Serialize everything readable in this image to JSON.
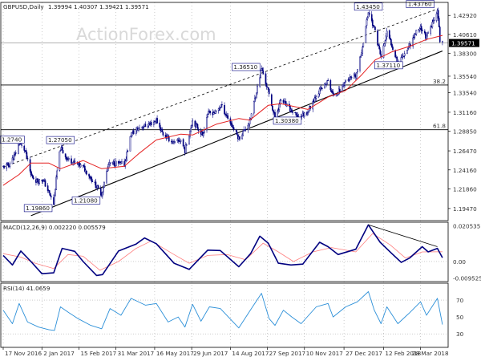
{
  "header": {
    "symbol": "GBPUSD,Daily",
    "ohlc": "1.39994 1.40307 1.39421 1.39571"
  },
  "watermark": "ActionForex.com",
  "colors": {
    "candle": "#000080",
    "sma": "#e52020",
    "trend_dashed": "#000000",
    "macd": "#000080",
    "signal": "#ff8080",
    "rsi": "#2b8fd8",
    "grid": "#999999"
  },
  "chart_data": [
    {
      "type": "candlestick",
      "title": "GBPUSD,Daily",
      "ohlc_text": "1.39994 1.40307 1.39421 1.39571",
      "ylim": [
        1.18,
        1.445
      ],
      "y_ticks": [
        "1.42920",
        "1.40610",
        "1.38300",
        "1.35540",
        "1.33540",
        "1.31160",
        "1.28850",
        "1.26470",
        "1.24160",
        "1.21860",
        "1.19470"
      ],
      "y_tick_values": [
        1.4292,
        1.4061,
        1.383,
        1.3554,
        1.3354,
        1.3116,
        1.2885,
        1.2647,
        1.2416,
        1.2186,
        1.1947
      ],
      "current_price": "1.39571",
      "fib_levels": [
        {
          "label": "38.2",
          "value": 1.3447
        },
        {
          "label": "61.8",
          "value": 1.2904
        }
      ],
      "price_labels": [
        {
          "text": "1.43450",
          "date": "2018-01-25",
          "value": 1.4345
        },
        {
          "text": "1.43760",
          "date": "2018-04-17",
          "value": 1.4376
        },
        {
          "text": "1.36510",
          "date": "2017-09-20",
          "value": 1.3651
        },
        {
          "text": "1.37110",
          "date": "2018-03-01",
          "value": 1.3711
        },
        {
          "text": "1.30380",
          "date": "2017-10-06",
          "value": 1.3038
        },
        {
          "text": "1.27050",
          "date": "2017-01-24",
          "value": 1.2705
        },
        {
          "text": "1.21080",
          "date": "2017-03-14",
          "value": 1.2108
        },
        {
          "text": "1.19860",
          "date": "2017-01-16",
          "value": 1.1986
        },
        {
          "text": "1.2740",
          "date": "2016-12-06",
          "value": 1.274
        }
      ],
      "price_path": [
        [
          "2016-11-17",
          1.245
        ],
        [
          "2016-11-24",
          1.248
        ],
        [
          "2016-12-01",
          1.26
        ],
        [
          "2016-12-06",
          1.274
        ],
        [
          "2016-12-13",
          1.265
        ],
        [
          "2016-12-20",
          1.235
        ],
        [
          "2016-12-27",
          1.228
        ],
        [
          "2017-01-03",
          1.23
        ],
        [
          "2017-01-10",
          1.215
        ],
        [
          "2017-01-16",
          1.2
        ],
        [
          "2017-01-20",
          1.24
        ],
        [
          "2017-01-24",
          1.268
        ],
        [
          "2017-02-01",
          1.255
        ],
        [
          "2017-02-10",
          1.25
        ],
        [
          "2017-02-20",
          1.245
        ],
        [
          "2017-03-01",
          1.232
        ],
        [
          "2017-03-14",
          1.212
        ],
        [
          "2017-03-22",
          1.248
        ],
        [
          "2017-03-31",
          1.25
        ],
        [
          "2017-04-10",
          1.248
        ],
        [
          "2017-04-18",
          1.285
        ],
        [
          "2017-04-28",
          1.293
        ],
        [
          "2017-05-10",
          1.297
        ],
        [
          "2017-05-18",
          1.302
        ],
        [
          "2017-05-26",
          1.285
        ],
        [
          "2017-06-08",
          1.274
        ],
        [
          "2017-06-16",
          1.278
        ],
        [
          "2017-06-21",
          1.265
        ],
        [
          "2017-06-30",
          1.302
        ],
        [
          "2017-07-12",
          1.284
        ],
        [
          "2017-07-18",
          1.31
        ],
        [
          "2017-07-28",
          1.312
        ],
        [
          "2017-08-03",
          1.32
        ],
        [
          "2017-08-24",
          1.28
        ],
        [
          "2017-09-06",
          1.3
        ],
        [
          "2017-09-20",
          1.365
        ],
        [
          "2017-09-28",
          1.337
        ],
        [
          "2017-10-06",
          1.304
        ],
        [
          "2017-10-13",
          1.327
        ],
        [
          "2017-10-24",
          1.315
        ],
        [
          "2017-11-02",
          1.305
        ],
        [
          "2017-11-14",
          1.312
        ],
        [
          "2017-11-24",
          1.333
        ],
        [
          "2017-12-08",
          1.349
        ],
        [
          "2017-12-14",
          1.332
        ],
        [
          "2017-12-22",
          1.338
        ],
        [
          "2017-12-29",
          1.35
        ],
        [
          "2018-01-10",
          1.355
        ],
        [
          "2018-01-16",
          1.38
        ],
        [
          "2018-01-25",
          1.434
        ],
        [
          "2018-02-02",
          1.41
        ],
        [
          "2018-02-09",
          1.378
        ],
        [
          "2018-02-16",
          1.408
        ],
        [
          "2018-02-22",
          1.393
        ],
        [
          "2018-03-01",
          1.372
        ],
        [
          "2018-03-08",
          1.382
        ],
        [
          "2018-03-16",
          1.395
        ],
        [
          "2018-03-23",
          1.41
        ],
        [
          "2018-03-28",
          1.415
        ],
        [
          "2018-04-04",
          1.402
        ],
        [
          "2018-04-10",
          1.416
        ],
        [
          "2018-04-17",
          1.437
        ],
        [
          "2018-04-20",
          1.4
        ],
        [
          "2018-04-23",
          1.396
        ]
      ],
      "ma_path": [
        [
          "2016-11-17",
          1.223
        ],
        [
          "2016-12-06",
          1.236
        ],
        [
          "2016-12-20",
          1.25
        ],
        [
          "2017-01-10",
          1.25
        ],
        [
          "2017-01-24",
          1.243
        ],
        [
          "2017-02-20",
          1.253
        ],
        [
          "2017-03-14",
          1.243
        ],
        [
          "2017-04-10",
          1.246
        ],
        [
          "2017-04-28",
          1.262
        ],
        [
          "2017-05-18",
          1.278
        ],
        [
          "2017-06-16",
          1.285
        ],
        [
          "2017-06-30",
          1.284
        ],
        [
          "2017-07-28",
          1.297
        ],
        [
          "2017-08-24",
          1.304
        ],
        [
          "2017-09-06",
          1.302
        ],
        [
          "2017-09-28",
          1.32
        ],
        [
          "2017-10-13",
          1.322
        ],
        [
          "2017-11-14",
          1.315
        ],
        [
          "2017-12-08",
          1.33
        ],
        [
          "2017-12-29",
          1.338
        ],
        [
          "2018-01-16",
          1.356
        ],
        [
          "2018-02-02",
          1.375
        ],
        [
          "2018-02-22",
          1.385
        ],
        [
          "2018-03-16",
          1.392
        ],
        [
          "2018-04-04",
          1.4
        ],
        [
          "2018-04-23",
          1.405
        ]
      ],
      "trend_lines": [
        {
          "style": "dashed",
          "from": [
            "2016-11-17",
            1.245
          ],
          "to": [
            "2018-04-17",
            1.437
          ]
        },
        {
          "style": "solid",
          "from": [
            "2016-12-20",
            1.186
          ],
          "to": [
            "2018-04-23",
            1.386
          ]
        }
      ],
      "x_ticks": [
        "17 Nov 2016",
        "2 Jan 2017",
        "15 Feb 2017",
        "31 Mar 2017",
        "16 May 2017",
        "29 Jun 2017",
        "14 Aug 2017",
        "27 Sep 2017",
        "10 Nov 2017",
        "27 Dec 2017",
        "12 Feb 2018",
        "28 Mar 2018"
      ],
      "x_tick_dates": [
        "2016-11-17",
        "2017-01-02",
        "2017-02-15",
        "2017-03-31",
        "2017-05-16",
        "2017-06-29",
        "2017-08-14",
        "2017-09-27",
        "2017-11-10",
        "2017-12-27",
        "2018-02-12",
        "2018-03-28"
      ]
    },
    {
      "type": "line",
      "title": "MACD(12,26,9) 0.002220 0.005579",
      "ylim": [
        -0.0115,
        0.0225
      ],
      "y_ticks": [
        "0.020535",
        "0.00",
        "-0.009525"
      ],
      "y_tick_values": [
        0.020535,
        0.0,
        -0.009525
      ],
      "series": [
        {
          "values": [
            [
              "2016-11-17",
              0.0035
            ],
            [
              "2016-11-28",
              -0.002
            ],
            [
              "2016-12-08",
              0.006
            ],
            [
              "2016-12-20",
              0.0
            ],
            [
              "2017-01-02",
              -0.007
            ],
            [
              "2017-01-16",
              -0.0065
            ],
            [
              "2017-01-26",
              0.0075
            ],
            [
              "2017-02-10",
              0.0058
            ],
            [
              "2017-02-20",
              0.0
            ],
            [
              "2017-03-08",
              -0.008
            ],
            [
              "2017-03-15",
              -0.0075
            ],
            [
              "2017-04-03",
              0.006
            ],
            [
              "2017-04-24",
              0.01
            ],
            [
              "2017-05-04",
              0.0135
            ],
            [
              "2017-05-18",
              0.0102
            ],
            [
              "2017-06-08",
              -0.001
            ],
            [
              "2017-06-26",
              -0.0045
            ],
            [
              "2017-07-18",
              0.0065
            ],
            [
              "2017-08-02",
              0.0063
            ],
            [
              "2017-08-24",
              -0.003
            ],
            [
              "2017-09-07",
              0.0045
            ],
            [
              "2017-09-18",
              0.0145
            ],
            [
              "2017-09-28",
              0.0105
            ],
            [
              "2017-10-10",
              -0.001
            ],
            [
              "2017-10-25",
              -0.002
            ],
            [
              "2017-11-08",
              -0.0015
            ],
            [
              "2017-11-28",
              0.011
            ],
            [
              "2017-12-08",
              0.0085
            ],
            [
              "2017-12-20",
              0.004
            ],
            [
              "2018-01-10",
              0.007
            ],
            [
              "2018-01-25",
              0.021
            ],
            [
              "2018-02-08",
              0.011
            ],
            [
              "2018-02-22",
              0.0045
            ],
            [
              "2018-03-05",
              -0.0005
            ],
            [
              "2018-03-15",
              0.002
            ],
            [
              "2018-03-30",
              0.0085
            ],
            [
              "2018-04-06",
              0.0055
            ],
            [
              "2018-04-17",
              0.0075
            ],
            [
              "2018-04-23",
              0.0022
            ]
          ]
        },
        {
          "values": [
            [
              "2016-11-17",
              0.0045
            ],
            [
              "2016-12-08",
              0.0025
            ],
            [
              "2016-12-25",
              -0.001
            ],
            [
              "2017-01-16",
              -0.004
            ],
            [
              "2017-02-02",
              0.004
            ],
            [
              "2017-02-20",
              0.003
            ],
            [
              "2017-03-12",
              -0.005
            ],
            [
              "2017-04-03",
              0.0
            ],
            [
              "2017-04-24",
              0.0075
            ],
            [
              "2017-05-12",
              0.0118
            ],
            [
              "2017-06-08",
              0.004
            ],
            [
              "2017-06-26",
              -0.001
            ],
            [
              "2017-07-18",
              0.0035
            ],
            [
              "2017-08-10",
              0.004
            ],
            [
              "2017-09-01",
              0.001
            ],
            [
              "2017-09-22",
              0.0105
            ],
            [
              "2017-10-10",
              0.0055
            ],
            [
              "2017-10-28",
              0.0
            ],
            [
              "2017-11-20",
              0.0055
            ],
            [
              "2017-12-12",
              0.008
            ],
            [
              "2018-01-10",
              0.0055
            ],
            [
              "2018-01-30",
              0.016
            ],
            [
              "2018-02-20",
              0.0095
            ],
            [
              "2018-03-10",
              0.002
            ],
            [
              "2018-03-30",
              0.0055
            ],
            [
              "2018-04-23",
              0.0056
            ]
          ]
        }
      ],
      "trend_lines": [
        {
          "style": "solid",
          "from": [
            "2018-01-25",
            0.021
          ],
          "to": [
            "2018-04-17",
            0.0085
          ]
        }
      ]
    },
    {
      "type": "line",
      "title": "RSI(14) 41.0659",
      "ylim": [
        14,
        90
      ],
      "y_ticks": [
        "70",
        "50",
        "30"
      ],
      "y_tick_values": [
        70,
        50,
        30
      ],
      "series": [
        {
          "values": [
            [
              "2016-11-17",
              58
            ],
            [
              "2016-11-28",
              42
            ],
            [
              "2016-12-06",
              66
            ],
            [
              "2016-12-16",
              44
            ],
            [
              "2016-12-29",
              38
            ],
            [
              "2017-01-10",
              35
            ],
            [
              "2017-01-17",
              34
            ],
            [
              "2017-01-24",
              62
            ],
            [
              "2017-02-03",
              55
            ],
            [
              "2017-02-14",
              48
            ],
            [
              "2017-03-01",
              40
            ],
            [
              "2017-03-14",
              36
            ],
            [
              "2017-03-24",
              60
            ],
            [
              "2017-04-06",
              52
            ],
            [
              "2017-04-18",
              72
            ],
            [
              "2017-05-05",
              64
            ],
            [
              "2017-05-18",
              66
            ],
            [
              "2017-06-01",
              44
            ],
            [
              "2017-06-13",
              50
            ],
            [
              "2017-06-21",
              38
            ],
            [
              "2017-06-30",
              65
            ],
            [
              "2017-07-10",
              45
            ],
            [
              "2017-07-20",
              62
            ],
            [
              "2017-08-02",
              60
            ],
            [
              "2017-08-24",
              37
            ],
            [
              "2017-09-08",
              60
            ],
            [
              "2017-09-20",
              78
            ],
            [
              "2017-09-29",
              48
            ],
            [
              "2017-10-06",
              40
            ],
            [
              "2017-10-16",
              58
            ],
            [
              "2017-10-26",
              50
            ],
            [
              "2017-11-06",
              42
            ],
            [
              "2017-11-24",
              62
            ],
            [
              "2017-12-08",
              66
            ],
            [
              "2017-12-14",
              50
            ],
            [
              "2017-12-29",
              62
            ],
            [
              "2018-01-12",
              68
            ],
            [
              "2018-01-25",
              80
            ],
            [
              "2018-02-01",
              58
            ],
            [
              "2018-02-09",
              42
            ],
            [
              "2018-02-16",
              62
            ],
            [
              "2018-03-01",
              42
            ],
            [
              "2018-03-15",
              55
            ],
            [
              "2018-03-28",
              68
            ],
            [
              "2018-04-04",
              52
            ],
            [
              "2018-04-17",
              72
            ],
            [
              "2018-04-23",
              41
            ]
          ]
        }
      ]
    }
  ]
}
